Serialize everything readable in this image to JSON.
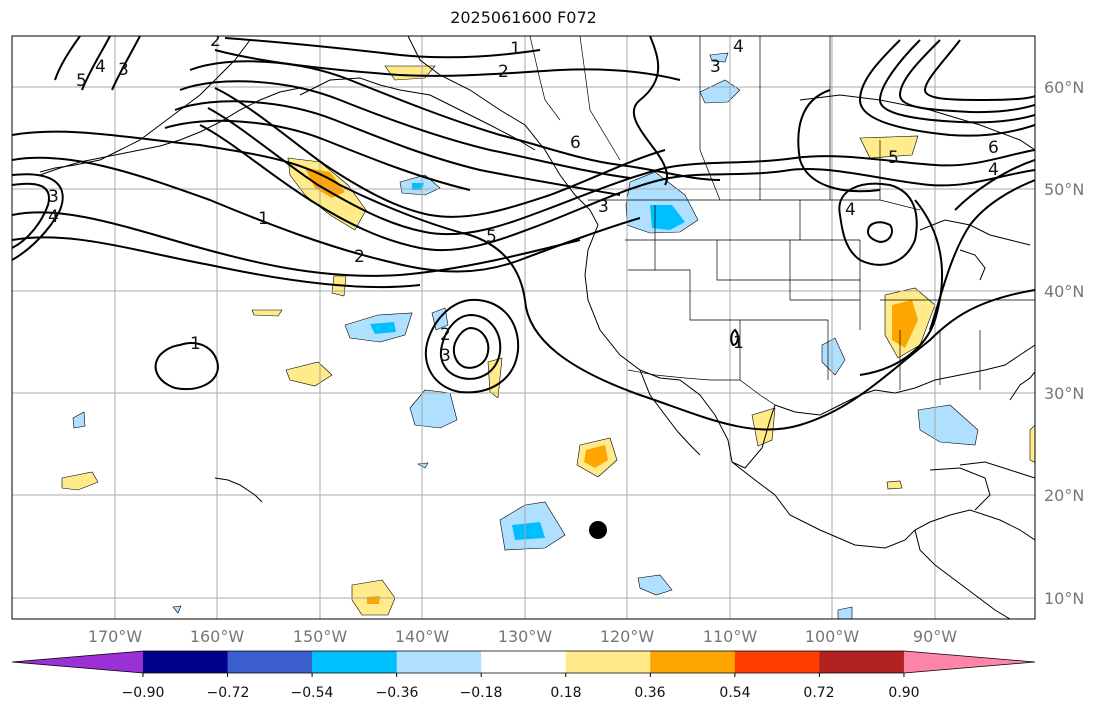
{
  "title": "2025061600 F072",
  "latitude_labels": [
    "60°N",
    "50°N",
    "40°N",
    "30°N",
    "20°N",
    "10°N"
  ],
  "longitude_labels": [
    "170°W",
    "160°W",
    "150°W",
    "140°W",
    "130°W",
    "120°W",
    "110°W",
    "100°W",
    "90°W"
  ],
  "colorbar": {
    "ticks": [
      "−0.90",
      "−0.72",
      "−0.54",
      "−0.36",
      "−0.18",
      "0.18",
      "0.36",
      "0.54",
      "0.72",
      "0.90"
    ],
    "colors": [
      "#9b30d6",
      "#00008b",
      "#3a5fcd",
      "#00bfff",
      "#b0e0ff",
      "#ffffff",
      "#ffeb8a",
      "#ffa500",
      "#ff3d00",
      "#b22222",
      "#ff85a8"
    ]
  },
  "contour_labels": [
    "1",
    "2",
    "3",
    "4",
    "5",
    "6"
  ],
  "marker": {
    "name": "location-dot",
    "color": "#000000"
  }
}
